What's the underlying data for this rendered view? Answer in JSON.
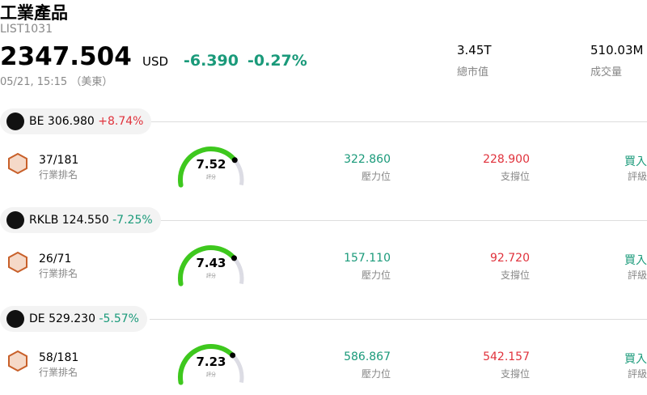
{
  "header": {
    "title": "工業產品",
    "code": "LIST1031",
    "price": "2347.504",
    "currency": "USD",
    "change": "-6.390",
    "change_pct": "-0.27%",
    "time": "05/21, 15:15 （美東）",
    "market_cap": "3.45T",
    "market_cap_label": "總市值",
    "volume": "510.03M",
    "volume_label": "成交量"
  },
  "stocks": [
    {
      "ticker": "BE",
      "price": "306.980",
      "change": "+8.74%",
      "rank": "37/181",
      "rank_label": "行業排名",
      "score": 7.52,
      "score_label": "評分",
      "resistance": "322.860",
      "resistance_label": "壓力位",
      "support": "228.900",
      "support_label": "支撐位",
      "rating": "買入",
      "rating_label": "評級"
    },
    {
      "ticker": "RKLB",
      "price": "124.550",
      "change": "-7.25%",
      "rank": "26/71",
      "rank_label": "行業排名",
      "score": 7.43,
      "score_label": "評分",
      "resistance": "157.110",
      "resistance_label": "壓力位",
      "support": "92.720",
      "support_label": "支撐位",
      "rating": "買入",
      "rating_label": "評級"
    },
    {
      "ticker": "DE",
      "price": "529.230",
      "change": "-5.57%",
      "rank": "58/181",
      "rank_label": "行業排名",
      "score": 7.23,
      "score_label": "評分",
      "resistance": "586.867",
      "resistance_label": "壓力位",
      "support": "542.157",
      "support_label": "支撐位",
      "rating": "買入",
      "rating_label": "評級"
    }
  ]
}
